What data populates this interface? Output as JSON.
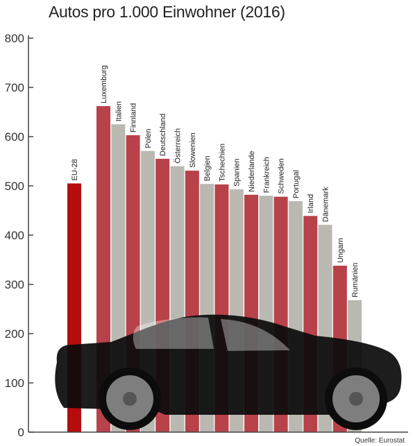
{
  "chart_data": {
    "type": "bar",
    "title": "Autos pro 1.000 Einwohner (2016)",
    "source": "Quelle: Eurostat",
    "ylim": [
      0,
      800
    ],
    "yticks": [
      0,
      100,
      200,
      300,
      400,
      500,
      600,
      700,
      800
    ],
    "grid": false,
    "categories": [
      "EU-28",
      "Luxemburg",
      "Italien",
      "Finnland",
      "Polen",
      "Deutschland",
      "Österreich",
      "Slowenien",
      "Belgien",
      "Tschechien",
      "Spanien",
      "Niederlande",
      "Frankreich",
      "Schweden",
      "Portugal",
      "Irland",
      "Dänemark",
      "Ungarn",
      "Rumänien"
    ],
    "values": [
      505,
      662,
      625,
      603,
      571,
      555,
      540,
      531,
      504,
      503,
      493,
      482,
      480,
      478,
      469,
      439,
      421,
      338,
      268
    ]
  },
  "colors": {
    "highlight": "#b50d0d",
    "red": "#b8424a",
    "gray": "#bab9b1",
    "car": "#0c0c0c",
    "axis": "#444444"
  }
}
